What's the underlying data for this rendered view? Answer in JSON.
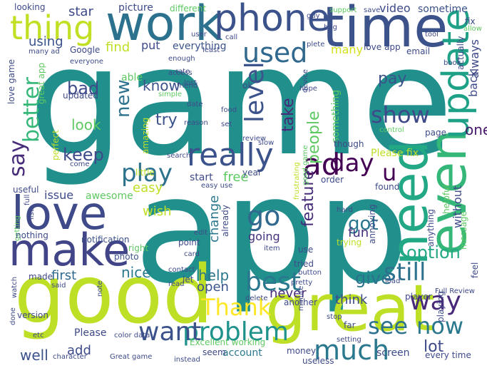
{
  "colors": {
    "background": "#ffffff",
    "palette": [
      "#440154",
      "#3b528b",
      "#21908d",
      "#5dc962",
      "#bddf26"
    ]
  },
  "words": [
    {
      "text": "game",
      "color": "#21908d"
    },
    {
      "text": "app",
      "color": "#21908d"
    },
    {
      "text": "good",
      "color": "#bddf26"
    },
    {
      "text": "great",
      "color": "#bddf26"
    },
    {
      "text": "work",
      "color": "#2c728e"
    },
    {
      "text": "time",
      "color": "#3b528b"
    },
    {
      "text": "phone",
      "color": "#3b528b"
    },
    {
      "text": "love",
      "color": "#3e4a89"
    },
    {
      "text": "make",
      "color": "#414487"
    },
    {
      "text": "need",
      "color": "#22a884"
    },
    {
      "text": "even",
      "color": "#35b779"
    },
    {
      "text": "update",
      "color": "#1fa187"
    },
    {
      "text": "thing",
      "color": "#c2df23"
    },
    {
      "text": "used",
      "color": "#31688e"
    },
    {
      "text": "really",
      "color": "#3b528b"
    },
    {
      "text": "problem",
      "color": "#20928c"
    },
    {
      "text": "want",
      "color": "#3b528b"
    },
    {
      "text": "much",
      "color": "#2a788e"
    },
    {
      "text": "show",
      "color": "#3e4a89"
    },
    {
      "text": "ad",
      "color": "#440154"
    },
    {
      "text": "day",
      "color": "#440154"
    },
    {
      "text": "play",
      "color": "#2c728e"
    },
    {
      "text": "go",
      "color": "#31688e"
    },
    {
      "text": "still",
      "color": "#2c728e"
    },
    {
      "text": "best",
      "color": "#2a788e"
    },
    {
      "text": "Thank",
      "color": "#fde725"
    },
    {
      "text": "way",
      "color": "#482878"
    },
    {
      "text": "now",
      "color": "#2a788e"
    },
    {
      "text": "see",
      "color": "#2c728e"
    },
    {
      "text": "level",
      "color": "#3b528b"
    },
    {
      "text": "better",
      "color": "#35b779"
    },
    {
      "text": "say",
      "color": "#472c7a"
    },
    {
      "text": "keep",
      "color": "#3e4a89"
    },
    {
      "text": "pay",
      "color": "#3b528b"
    },
    {
      "text": "option",
      "color": "#22a884"
    },
    {
      "text": "people",
      "color": "#5ec962"
    },
    {
      "text": "take",
      "color": "#482878"
    },
    {
      "text": "feature",
      "color": "#472c7a"
    },
    {
      "text": "got",
      "color": "#2a788e"
    },
    {
      "text": "give",
      "color": "#2c728e"
    },
    {
      "text": "lot",
      "color": "#3e4a89"
    },
    {
      "text": "new",
      "color": "#2c728e"
    },
    {
      "text": "u",
      "color": "#440154"
    },
    {
      "text": "one",
      "color": "#481a6c"
    },
    {
      "text": "using",
      "color": "#3b528b"
    },
    {
      "text": "star",
      "color": "#3e4a89"
    },
    {
      "text": "bad",
      "color": "#3e4a89"
    },
    {
      "text": "know",
      "color": "#3b528b"
    },
    {
      "text": "look",
      "color": "#5ec962"
    },
    {
      "text": "try",
      "color": "#3b528b"
    },
    {
      "text": "fun",
      "color": "#46327e"
    },
    {
      "text": "nice",
      "color": "#2a788e"
    },
    {
      "text": "help",
      "color": "#2a788e"
    },
    {
      "text": "open",
      "color": "#3b528b"
    },
    {
      "text": "add",
      "color": "#3e4a89"
    },
    {
      "text": "well",
      "color": "#3b528b"
    },
    {
      "text": "think",
      "color": "#3e4a89"
    },
    {
      "text": "never",
      "color": "#482878"
    },
    {
      "text": "wish",
      "color": "#bddf26"
    },
    {
      "text": "easy",
      "color": "#bddf26"
    },
    {
      "text": "first",
      "color": "#31688e"
    },
    {
      "text": "free",
      "color": "#5ec962"
    },
    {
      "text": "change",
      "color": "#2a788e"
    },
    {
      "text": "going",
      "color": "#46327e"
    },
    {
      "text": "find",
      "color": "#bddf26"
    },
    {
      "text": "put",
      "color": "#3e4a89"
    },
    {
      "text": "everything",
      "color": "#3b528b"
    },
    {
      "text": "many",
      "color": "#d2e21b"
    },
    {
      "text": "video",
      "color": "#3e4a89"
    },
    {
      "text": "sometime",
      "color": "#3b528b"
    },
    {
      "text": "always",
      "color": "#3e4a89"
    },
    {
      "text": "back",
      "color": "#3e4a89"
    },
    {
      "text": "Please fix",
      "color": "#bddf26"
    },
    {
      "text": "without",
      "color": "#3e4a89"
    },
    {
      "text": "something",
      "color": "#5ec962"
    },
    {
      "text": "issue",
      "color": "#3e4a89"
    },
    {
      "text": "awesome",
      "color": "#5ec962"
    },
    {
      "text": "start",
      "color": "#3e4a89"
    },
    {
      "text": "picture",
      "color": "#3e4a89"
    },
    {
      "text": "different",
      "color": "#5ec962"
    },
    {
      "text": "able",
      "color": "#5ec962"
    },
    {
      "text": "amazing",
      "color": "#bddf26"
    },
    {
      "text": "love game",
      "color": "#3e4a89"
    },
    {
      "text": "notification",
      "color": "#3b528b"
    },
    {
      "text": "photo",
      "color": "#3b528b"
    },
    {
      "text": "right",
      "color": "#5ec962"
    },
    {
      "text": "point",
      "color": "#3e4a89"
    },
    {
      "text": "made",
      "color": "#3e4a89"
    },
    {
      "text": "Please",
      "color": "#3e4a89"
    },
    {
      "text": "account",
      "color": "#2a788e"
    },
    {
      "text": "seem",
      "color": "#3e4a89"
    },
    {
      "text": "money",
      "color": "#3e4a89"
    },
    {
      "text": "screen",
      "color": "#3e4a89"
    },
    {
      "text": "every time",
      "color": "#3e4a89"
    },
    {
      "text": "annoying",
      "color": "#3e4a89"
    },
    {
      "text": "anything",
      "color": "#3e4a89"
    },
    {
      "text": "Excellent working",
      "color": "#5ec962"
    },
    {
      "text": "tried",
      "color": "#3e4a89"
    },
    {
      "text": "love app",
      "color": "#3e4a89"
    },
    {
      "text": "email",
      "color": "#3e4a89"
    },
    {
      "text": "found",
      "color": "#3e4a89"
    },
    {
      "text": "though",
      "color": "#3e4a89"
    },
    {
      "text": "page",
      "color": "#3e4a89"
    },
    {
      "text": "player",
      "color": "#3e4a89"
    },
    {
      "text": "Full Review",
      "color": "#3e4a89"
    },
    {
      "text": "far",
      "color": "#3e4a89"
    },
    {
      "text": "another",
      "color": "#3e4a89"
    },
    {
      "text": "trying",
      "color": "#bddf26"
    },
    {
      "text": "use",
      "color": "#3e4a89"
    },
    {
      "text": "looking",
      "color": "#3e4a89"
    },
    {
      "text": "Google",
      "color": "#3e4a89"
    },
    {
      "text": "fix",
      "color": "#3e4a89"
    },
    {
      "text": "useless",
      "color": "#3e4a89"
    },
    {
      "text": "instead",
      "color": "#3e4a89"
    },
    {
      "text": "hard",
      "color": "#3e4a89"
    },
    {
      "text": "getting",
      "color": "#5ec962"
    },
    {
      "text": "useful",
      "color": "#3e4a89"
    },
    {
      "text": "nothing",
      "color": "#3e4a89"
    },
    {
      "text": "version",
      "color": "#3e4a89"
    },
    {
      "text": "message",
      "color": "#5ec962"
    },
    {
      "text": "helpful",
      "color": "#5ec962"
    },
    {
      "text": "actually",
      "color": "#3e4a89"
    },
    {
      "text": "perfect",
      "color": "#bddf26"
    },
    {
      "text": "great app",
      "color": "#5ec962"
    },
    {
      "text": "feel",
      "color": "#3e4a89"
    },
    {
      "text": "playing",
      "color": "#3e4a89"
    },
    {
      "text": "updated",
      "color": "#3e4a89"
    },
    {
      "text": "little",
      "color": "#bddf26"
    },
    {
      "text": "year",
      "color": "#3e4a89"
    },
    {
      "text": "order",
      "color": "#3e4a89"
    },
    {
      "text": "already",
      "color": "#3e4a89"
    },
    {
      "text": "easy use",
      "color": "#3e4a89"
    },
    {
      "text": "good game",
      "color": "#5ec962"
    },
    {
      "text": "frustrating",
      "color": "#bddf26"
    },
    {
      "text": "character",
      "color": "#3e4a89"
    },
    {
      "text": "Great game",
      "color": "#3e4a89"
    },
    {
      "text": "color data",
      "color": "#3e4a89"
    },
    {
      "text": "many ad",
      "color": "#3e4a89"
    },
    {
      "text": "guy",
      "color": "#3e4a89"
    },
    {
      "text": "support",
      "color": "#5ec962"
    },
    {
      "text": "save",
      "color": "#3e4a89"
    },
    {
      "text": "bug",
      "color": "#3e4a89"
    },
    {
      "text": "tool",
      "color": "#3e4a89"
    },
    {
      "text": "call",
      "color": "#3e4a89"
    },
    {
      "text": "user",
      "color": "#3e4a89"
    },
    {
      "text": "least",
      "color": "#3e4a89"
    },
    {
      "text": "hope",
      "color": "#3e4a89"
    },
    {
      "text": "device",
      "color": "#3e4a89"
    },
    {
      "text": "control",
      "color": "#5ec962"
    },
    {
      "text": "review",
      "color": "#3e4a89"
    },
    {
      "text": "slow",
      "color": "#3e4a89"
    },
    {
      "text": "set",
      "color": "#3e4a89"
    },
    {
      "text": "ok",
      "color": "#3e4a89"
    },
    {
      "text": "food",
      "color": "#3e4a89"
    },
    {
      "text": "lost",
      "color": "#3e4a89"
    },
    {
      "text": "reason",
      "color": "#3e4a89"
    },
    {
      "text": "search",
      "color": "#3e4a89"
    },
    {
      "text": "come",
      "color": "#3e4a89"
    },
    {
      "text": "card",
      "color": "#3e4a89"
    },
    {
      "text": "edit",
      "color": "#3e4a89"
    },
    {
      "text": "contact",
      "color": "#3e4a89"
    },
    {
      "text": "let",
      "color": "#3e4a89"
    },
    {
      "text": "read",
      "color": "#3e4a89"
    },
    {
      "text": "said",
      "color": "#3e4a89"
    },
    {
      "text": "button",
      "color": "#3e4a89"
    },
    {
      "text": "load",
      "color": "#3e4a89"
    },
    {
      "text": "item",
      "color": "#3e4a89"
    },
    {
      "text": "pretty",
      "color": "#3e4a89"
    },
    {
      "text": "delete",
      "color": "#3e4a89"
    },
    {
      "text": "stop",
      "color": "#3e4a89"
    },
    {
      "text": "setting",
      "color": "#3e4a89"
    },
    {
      "text": "minute",
      "color": "#3e4a89"
    },
    {
      "text": "watch",
      "color": "#3e4a89"
    },
    {
      "text": "done",
      "color": "#3e4a89"
    },
    {
      "text": "etc",
      "color": "#3e4a89"
    },
    {
      "text": "note",
      "color": "#3e4a89"
    },
    {
      "text": "simple",
      "color": "#5ec962"
    },
    {
      "text": "allow",
      "color": "#5ec962"
    },
    {
      "text": "book",
      "color": "#3e4a89"
    },
    {
      "text": "access",
      "color": "#3e4a89"
    },
    {
      "text": "enough",
      "color": "#3e4a89"
    },
    {
      "text": "list",
      "color": "#3e4a89"
    },
    {
      "text": "full",
      "color": "#3e4a89"
    },
    {
      "text": "rate",
      "color": "#3e4a89"
    },
    {
      "text": "date",
      "color": "#3e4a89"
    },
    {
      "text": "friend",
      "color": "#3e4a89"
    },
    {
      "text": "everyone",
      "color": "#3e4a89"
    },
    {
      "text": "plete",
      "color": "#3e4a89"
    }
  ]
}
